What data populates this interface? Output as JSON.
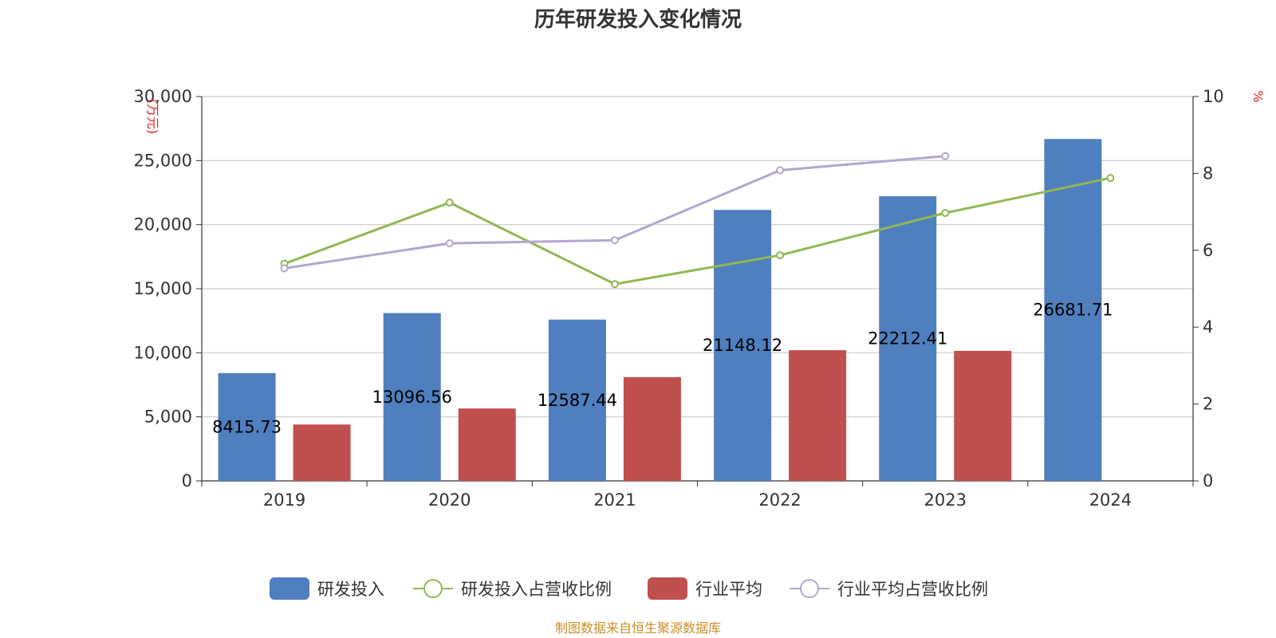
{
  "chart_data": {
    "type": "bar",
    "title": "历年研发投入变化情况",
    "categories": [
      "2019",
      "2020",
      "2021",
      "2022",
      "2023",
      "2024"
    ],
    "y_left": {
      "unit": "(万元)",
      "min": 0,
      "max": 30000,
      "ticks": [
        0,
        5000,
        10000,
        15000,
        20000,
        25000,
        30000
      ],
      "tick_labels": [
        "0",
        "5,000",
        "10,000",
        "15,000",
        "20,000",
        "25,000",
        "30,000"
      ]
    },
    "y_right": {
      "unit": "%",
      "min": 0,
      "max": 10,
      "ticks": [
        0,
        2,
        4,
        6,
        8,
        10
      ],
      "tick_labels": [
        "0",
        "2",
        "4",
        "6",
        "8",
        "10"
      ]
    },
    "grid": true,
    "legend_position": "bottom",
    "series": [
      {
        "name": "研发投入",
        "type": "bar",
        "axis": "left",
        "color": "#4f7fbe",
        "values": [
          8415.73,
          13096.56,
          12587.44,
          21148.12,
          22212.41,
          26681.71
        ],
        "labels": [
          "8415.73",
          "13096.56",
          "12587.44",
          "21148.12",
          "22212.41",
          "26681.71"
        ]
      },
      {
        "name": "研发投入占营收比例",
        "type": "line",
        "axis": "right",
        "color": "#92b853",
        "values": [
          5.65,
          7.24,
          5.12,
          5.87,
          6.97,
          7.88
        ]
      },
      {
        "name": "行业平均",
        "type": "bar",
        "axis": "left",
        "color": "#c0504d",
        "values": [
          4400,
          5650,
          8100,
          10200,
          10150,
          null
        ]
      },
      {
        "name": "行业平均占营收比例",
        "type": "line",
        "axis": "right",
        "color": "#b3a6cf",
        "values": [
          5.53,
          6.18,
          6.26,
          8.08,
          8.45,
          null
        ]
      }
    ]
  },
  "source_text": "制图数据来自恒生聚源数据库"
}
